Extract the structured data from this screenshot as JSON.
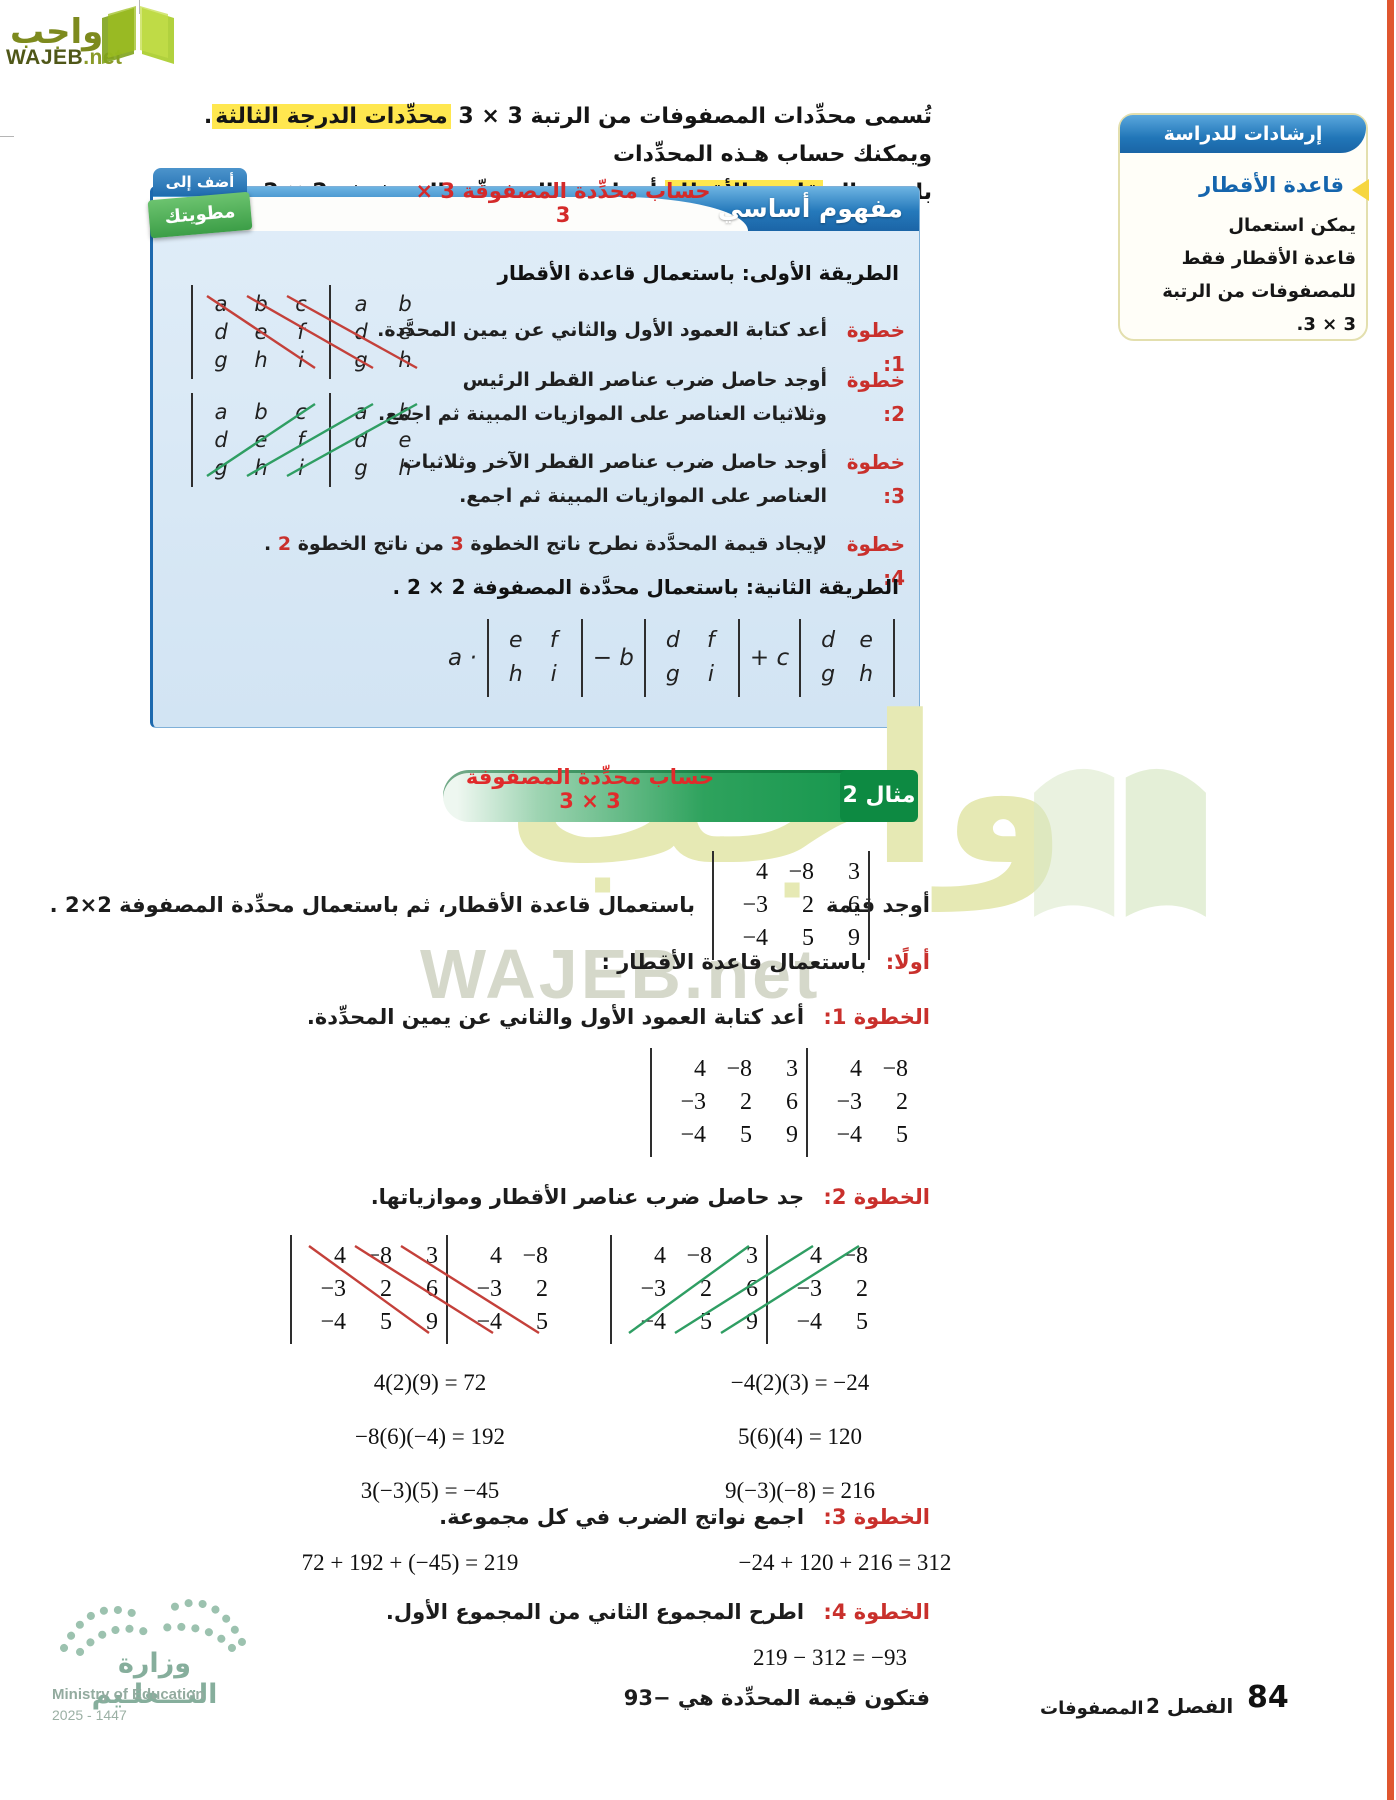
{
  "logo": {
    "arabic": "واجب",
    "latin": "WAJEB",
    "tld": ".net"
  },
  "intro": {
    "line1_pre": "تُسمى محدِّدات المصفوفات من الرتبة 3 × 3 ",
    "line1_highlight": "محدِّدات الدرجة الثالثة",
    "line1_post": ". ويمكنك حساب هـذه المحدِّدات",
    "line2_pre": "باستعمال ",
    "line2_highlight": "قاعدة الأقطار",
    "line2_post": " أو باستعمال محدِّدة المصفوفة 2 × 2 ."
  },
  "study_tips": {
    "header": "إرشادات للدراسة",
    "title": "قاعدة الأقطار",
    "lines": [
      "يمكن استعمال",
      "قاعدة الأقطار فقط",
      "للمصفوفات من الرتبة",
      "3 × 3."
    ]
  },
  "concept": {
    "tab_top": "أضف إلى",
    "tab_ribbon": "مطويتك",
    "title": "مفهوم أساسي",
    "subtitle": "حساب محدِّدة المصفوفة 3 × 3",
    "method1": "الطريقة الأولى:  باستعمال قاعدة الأقطار",
    "step1_label": "خطوة 1:",
    "step1_text": "أعد كتابة العمود الأول والثاني عن يمين المحدَّدة.",
    "step2_label": "خطوة 2:",
    "step2_line1": "أوجد حاصل ضرب عناصر القطر الرئيس",
    "step2_line2": "وثلاثيات العناصر على الموازيات المبينة ثم اجمع.",
    "step3_label": "خطوة 3:",
    "step3_line1": "أوجد حاصل ضرب عناصر القطر الآخر وثلاثيات",
    "step3_line2": "العناصر على الموازيات المبينة ثم اجمع.",
    "step4_label": "خطوة 4:",
    "step4_pre": "لإيجاد قيمة المحدَّدة نطرح ناتج الخطوة ",
    "step4_num1": "3",
    "step4_mid": " من ناتج الخطوة ",
    "step4_num2": "2",
    "step4_post": " .",
    "method2": "الطريقة الثانية: باستعمال محدَّدة المصفوفة 2 × 2 .",
    "letters_matrix": [
      [
        "a",
        "b",
        "c",
        "a",
        "b"
      ],
      [
        "d",
        "e",
        "f",
        "d",
        "e"
      ],
      [
        "g",
        "h",
        "i",
        "g",
        "h"
      ]
    ],
    "formula": {
      "t1": "a ·",
      "m1": [
        [
          "e",
          "f"
        ],
        [
          "h",
          "i"
        ]
      ],
      "t2": "− b",
      "m2": [
        [
          "d",
          "f"
        ],
        [
          "g",
          "i"
        ]
      ],
      "t3": "+ c",
      "m3": [
        [
          "d",
          "e"
        ],
        [
          "g",
          "h"
        ]
      ]
    }
  },
  "example": {
    "badge": "مثال 2",
    "title": "حساب محدِّدة المصفوفة 3 × 3",
    "prompt_start": "أوجد قيمة",
    "matrix": [
      [
        "4",
        "−8",
        "3"
      ],
      [
        "−3",
        "2",
        "6"
      ],
      [
        "−4",
        "5",
        "9"
      ]
    ],
    "prompt_end": "باستعمال قاعدة الأقطار، ثم باستعمال محدِّدة المصفوفة 2×2 .",
    "first_label": "أولًا:",
    "first_text": "باستعمال قاعدة الأقطار :",
    "step1_label": "الخطوة 1:",
    "step1_text": "أعد كتابة العمود الأول والثاني عن يمين المحدِّدة.",
    "expanded_matrix": [
      [
        "4",
        "−8",
        "3",
        "4",
        "−8"
      ],
      [
        "−3",
        "2",
        "6",
        "−3",
        "2"
      ],
      [
        "−4",
        "5",
        "9",
        "−4",
        "5"
      ]
    ],
    "step2_label": "الخطوة 2:",
    "step2_text": "جد حاصل ضرب عناصر الأقطار وموازياتها.",
    "calc_left": [
      "4(2)(9) = 72",
      "−8(6)(−4) = 192",
      "3(−3)(5) = −45"
    ],
    "calc_right": [
      "−4(2)(3) = −24",
      "5(6)(4) = 120",
      "9(−3)(−8) = 216"
    ],
    "step3_label": "الخطوة 3:",
    "step3_text": "اجمع نواتج الضرب في كل مجموعة.",
    "sum_left": "72 + 192 + (−45) = 219",
    "sum_right": "−24 + 120 + 216 = 312",
    "step4_label": "الخطوة 4:",
    "step4_text": "اطرح المجموع الثاني من المجموع الأول.",
    "final_equation": "219 − 312 = −93",
    "conclusion": "فتكون قيمة المحدِّدة هي −93"
  },
  "watermark": {
    "arabic": "واجب",
    "latin": "WAJEB.net"
  },
  "ministry": {
    "ar": "وزارة التـــعلـيم",
    "en": "Ministry of Education",
    "years": "2025 - 1447"
  },
  "footer": {
    "page": "84",
    "chapter": "الفصل 2",
    "section": "المصفوفات"
  },
  "colors": {
    "accent_blue": "#2176b8",
    "accent_green": "#0e9348",
    "accent_red": "#c9302c",
    "highlight": "#ffe74f",
    "edge_strip": "#e0562f"
  }
}
